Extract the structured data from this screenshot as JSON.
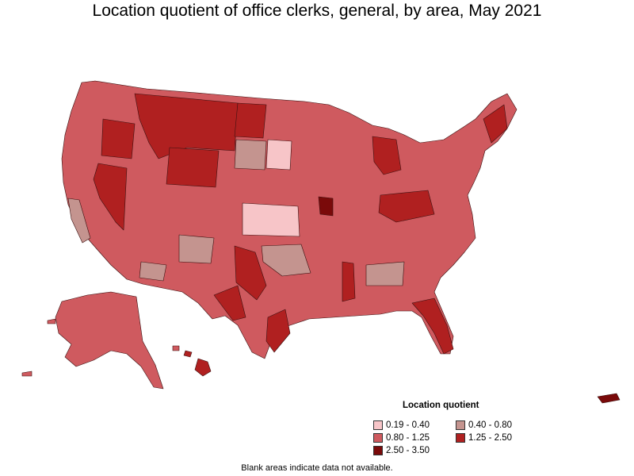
{
  "title": "Location quotient of office clerks, general, by area, May 2021",
  "legend": {
    "title": "Location quotient",
    "items": [
      {
        "label": "0.19 - 0.40",
        "color": "#f7c5c8"
      },
      {
        "label": "0.40 - 0.80",
        "color": "#c4948f"
      },
      {
        "label": "0.80 - 1.25",
        "color": "#cf5a5f"
      },
      {
        "label": "1.25 - 2.50",
        "color": "#b02020"
      },
      {
        "label": "2.50 - 3.50",
        "color": "#7a0a0a"
      }
    ]
  },
  "footnote": "Blank areas indicate data not available.",
  "colors": {
    "border": "#3a1010",
    "background": "#ffffff"
  }
}
